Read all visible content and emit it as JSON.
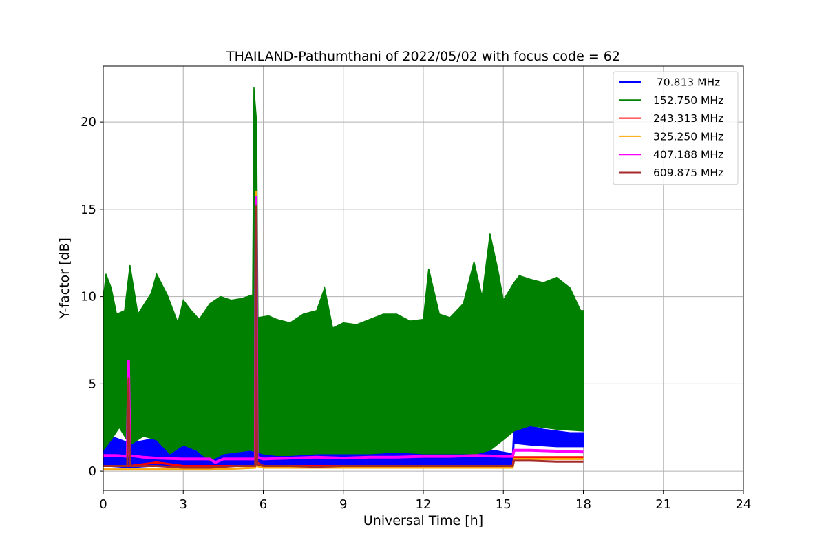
{
  "chart_data": {
    "type": "line",
    "title": "THAILAND-Pathumthani of 2022/05/02 with focus code = 62",
    "xlabel": "Universal Time [h]",
    "ylabel": "Y-factor [dB]",
    "xlim": [
      0,
      24
    ],
    "ylim": [
      -1.1,
      23.2
    ],
    "xticks": [
      0,
      3,
      6,
      9,
      12,
      15,
      18,
      21,
      24
    ],
    "yticks": [
      0,
      5,
      10,
      15,
      20
    ],
    "grid": true,
    "legend_position": "top-right",
    "series": [
      {
        "name": " 70.813 MHz",
        "color": "#0000ff",
        "points": [
          [
            0,
            0.6
          ],
          [
            0.2,
            2.2
          ],
          [
            0.5,
            0.5
          ],
          [
            1,
            0.3
          ],
          [
            1.5,
            1.5
          ],
          [
            2,
            0.6
          ],
          [
            2.5,
            1.2
          ],
          [
            3,
            0.5
          ],
          [
            3.5,
            1.4
          ],
          [
            4,
            0.9
          ],
          [
            4.3,
            0.2
          ],
          [
            5,
            0.7
          ],
          [
            5.7,
            1.0
          ],
          [
            6,
            0.8
          ],
          [
            7,
            0.9
          ],
          [
            8,
            0.4
          ],
          [
            9,
            0.6
          ],
          [
            10,
            0.5
          ],
          [
            11,
            0.6
          ],
          [
            12,
            0.5
          ],
          [
            13,
            0.6
          ],
          [
            14,
            0.5
          ],
          [
            15,
            0.7
          ],
          [
            15.35,
            0.6
          ],
          [
            15.4,
            2.2
          ],
          [
            16,
            2.0
          ],
          [
            17,
            1.8
          ],
          [
            18,
            1.7
          ]
        ],
        "band_high": [
          [
            0,
            2.5
          ],
          [
            0.3,
            2.0
          ],
          [
            1,
            1.6
          ],
          [
            2,
            1.9
          ],
          [
            2.3,
            2.0
          ],
          [
            3,
            1.5
          ],
          [
            3.3,
            1.8
          ],
          [
            4,
            1.5
          ],
          [
            5,
            1.3
          ],
          [
            5.7,
            1.7
          ],
          [
            6,
            1.3
          ],
          [
            7,
            1.4
          ],
          [
            8,
            1.2
          ],
          [
            9,
            1.1
          ],
          [
            10,
            1.1
          ],
          [
            11,
            1.1
          ],
          [
            12,
            1.0
          ],
          [
            13,
            1.0
          ],
          [
            14,
            1.0
          ],
          [
            14.6,
            1.2
          ],
          [
            15.35,
            1.0
          ],
          [
            15.4,
            2.5
          ],
          [
            16,
            2.6
          ],
          [
            16.5,
            2.4
          ],
          [
            17,
            2.3
          ],
          [
            17.5,
            2.2
          ],
          [
            18,
            2.2
          ]
        ],
        "band_low": [
          [
            0,
            0.3
          ],
          [
            1,
            0.2
          ],
          [
            2,
            0.3
          ],
          [
            3,
            0.2
          ],
          [
            4,
            0.2
          ],
          [
            5,
            0.3
          ],
          [
            6,
            0.3
          ],
          [
            7,
            0.3
          ],
          [
            8,
            0.3
          ],
          [
            9,
            0.3
          ],
          [
            10,
            0.3
          ],
          [
            11,
            0.3
          ],
          [
            12,
            0.3
          ],
          [
            13,
            0.3
          ],
          [
            14,
            0.3
          ],
          [
            15.35,
            0.3
          ],
          [
            15.4,
            1.6
          ],
          [
            16,
            1.5
          ],
          [
            17,
            1.4
          ],
          [
            18,
            1.4
          ]
        ]
      },
      {
        "name": "152.750 MHz",
        "color": "#008000",
        "band_high": [
          [
            0,
            9.8
          ],
          [
            0.1,
            11.3
          ],
          [
            0.3,
            10.5
          ],
          [
            0.5,
            9.0
          ],
          [
            0.8,
            9.2
          ],
          [
            1.0,
            11.8
          ],
          [
            1.3,
            9.0
          ],
          [
            1.8,
            10.2
          ],
          [
            2.0,
            11.3
          ],
          [
            2.4,
            10.1
          ],
          [
            2.8,
            8.5
          ],
          [
            3.0,
            9.8
          ],
          [
            3.3,
            9.2
          ],
          [
            3.6,
            8.7
          ],
          [
            4.0,
            9.6
          ],
          [
            4.4,
            10.0
          ],
          [
            4.8,
            9.8
          ],
          [
            5.2,
            9.9
          ],
          [
            5.6,
            10.1
          ],
          [
            5.65,
            22.0
          ],
          [
            5.75,
            20.0
          ],
          [
            5.8,
            8.8
          ],
          [
            6.2,
            8.9
          ],
          [
            6.5,
            8.7
          ],
          [
            7.0,
            8.5
          ],
          [
            7.5,
            9.0
          ],
          [
            8.0,
            9.2
          ],
          [
            8.3,
            10.5
          ],
          [
            8.6,
            8.2
          ],
          [
            9.0,
            8.5
          ],
          [
            9.5,
            8.4
          ],
          [
            10.0,
            8.7
          ],
          [
            10.5,
            9.0
          ],
          [
            11.0,
            9.0
          ],
          [
            11.5,
            8.6
          ],
          [
            12.0,
            8.7
          ],
          [
            12.2,
            11.6
          ],
          [
            12.6,
            9.0
          ],
          [
            13.0,
            8.8
          ],
          [
            13.5,
            9.6
          ],
          [
            13.9,
            12.0
          ],
          [
            14.2,
            10.0
          ],
          [
            14.5,
            13.6
          ],
          [
            14.8,
            11.5
          ],
          [
            15.0,
            9.8
          ],
          [
            15.4,
            10.8
          ],
          [
            15.6,
            11.2
          ],
          [
            16.0,
            11.0
          ],
          [
            16.5,
            10.8
          ],
          [
            17.0,
            11.1
          ],
          [
            17.5,
            10.5
          ],
          [
            17.9,
            9.2
          ],
          [
            18.0,
            9.2
          ]
        ],
        "band_low": [
          [
            0,
            1.2
          ],
          [
            0.3,
            1.8
          ],
          [
            0.6,
            2.5
          ],
          [
            1.0,
            1.5
          ],
          [
            1.5,
            2.0
          ],
          [
            2.0,
            1.8
          ],
          [
            2.5,
            1.0
          ],
          [
            3.0,
            1.5
          ],
          [
            3.5,
            1.2
          ],
          [
            4.0,
            0.6
          ],
          [
            4.5,
            1.0
          ],
          [
            5.0,
            1.1
          ],
          [
            5.5,
            1.2
          ],
          [
            6.0,
            1.0
          ],
          [
            6.5,
            0.9
          ],
          [
            7.0,
            0.9
          ],
          [
            8.0,
            1.0
          ],
          [
            9.0,
            1.0
          ],
          [
            10.0,
            1.0
          ],
          [
            11.0,
            1.1
          ],
          [
            12.0,
            1.0
          ],
          [
            13.0,
            1.0
          ],
          [
            14.0,
            1.0
          ],
          [
            14.5,
            1.2
          ],
          [
            15.0,
            1.8
          ],
          [
            15.4,
            2.3
          ],
          [
            16.0,
            2.6
          ],
          [
            17.0,
            2.4
          ],
          [
            18.0,
            2.3
          ]
        ]
      },
      {
        "name": "243.313 MHz",
        "color": "#ff0000",
        "points": [
          [
            0,
            0.3
          ],
          [
            1,
            0.3
          ],
          [
            2,
            0.5
          ],
          [
            3,
            0.3
          ],
          [
            4,
            0.3
          ],
          [
            5,
            0.3
          ],
          [
            5.7,
            0.3
          ],
          [
            5.72,
            15.0
          ],
          [
            5.76,
            0.5
          ],
          [
            6,
            0.3
          ],
          [
            8,
            0.3
          ],
          [
            10,
            0.3
          ],
          [
            12,
            0.3
          ],
          [
            14,
            0.3
          ],
          [
            15.35,
            0.3
          ],
          [
            15.4,
            0.8
          ],
          [
            16,
            0.8
          ],
          [
            17,
            0.8
          ],
          [
            18,
            0.8
          ]
        ]
      },
      {
        "name": "325.250 MHz",
        "color": "#ffa500",
        "points": [
          [
            0,
            0.1
          ],
          [
            1,
            0.1
          ],
          [
            2,
            0.1
          ],
          [
            3,
            0.1
          ],
          [
            4,
            0.1
          ],
          [
            5,
            0.15
          ],
          [
            5.7,
            0.2
          ],
          [
            5.73,
            16.0
          ],
          [
            5.77,
            0.3
          ],
          [
            6,
            0.2
          ],
          [
            8,
            0.2
          ],
          [
            10,
            0.2
          ],
          [
            12,
            0.2
          ],
          [
            14,
            0.2
          ],
          [
            15.35,
            0.2
          ],
          [
            15.4,
            0.7
          ],
          [
            16,
            0.7
          ],
          [
            17,
            0.7
          ],
          [
            18,
            0.7
          ]
        ]
      },
      {
        "name": "407.188 MHz",
        "color": "#ff00ff",
        "points": [
          [
            0,
            0.9
          ],
          [
            0.5,
            0.9
          ],
          [
            0.9,
            0.85
          ],
          [
            0.95,
            6.3
          ],
          [
            1.0,
            0.9
          ],
          [
            1.5,
            0.8
          ],
          [
            2,
            0.75
          ],
          [
            3,
            0.7
          ],
          [
            4,
            0.7
          ],
          [
            4.2,
            0.5
          ],
          [
            4.5,
            0.7
          ],
          [
            5,
            0.7
          ],
          [
            5.7,
            0.7
          ],
          [
            5.73,
            15.7
          ],
          [
            5.77,
            0.8
          ],
          [
            6,
            0.7
          ],
          [
            7,
            0.75
          ],
          [
            8,
            0.8
          ],
          [
            9,
            0.75
          ],
          [
            10,
            0.8
          ],
          [
            11,
            0.8
          ],
          [
            12,
            0.85
          ],
          [
            13,
            0.85
          ],
          [
            14,
            0.9
          ],
          [
            15,
            0.85
          ],
          [
            15.35,
            0.85
          ],
          [
            15.4,
            1.2
          ],
          [
            16,
            1.2
          ],
          [
            17,
            1.15
          ],
          [
            18,
            1.1
          ]
        ]
      },
      {
        "name": "609.875 MHz",
        "color": "#a52a2a",
        "points": [
          [
            0,
            0.3
          ],
          [
            0.9,
            0.3
          ],
          [
            0.95,
            5.3
          ],
          [
            1.0,
            0.3
          ],
          [
            2,
            0.3
          ],
          [
            3,
            0.2
          ],
          [
            4,
            0.2
          ],
          [
            5,
            0.3
          ],
          [
            5.7,
            0.3
          ],
          [
            5.73,
            15.2
          ],
          [
            5.77,
            0.4
          ],
          [
            6,
            0.3
          ],
          [
            7,
            0.3
          ],
          [
            8,
            0.25
          ],
          [
            9,
            0.3
          ],
          [
            10,
            0.3
          ],
          [
            11,
            0.3
          ],
          [
            12,
            0.3
          ],
          [
            13,
            0.3
          ],
          [
            14,
            0.3
          ],
          [
            15.35,
            0.3
          ],
          [
            15.4,
            0.6
          ],
          [
            16,
            0.6
          ],
          [
            17,
            0.55
          ],
          [
            18,
            0.55
          ]
        ]
      }
    ]
  }
}
